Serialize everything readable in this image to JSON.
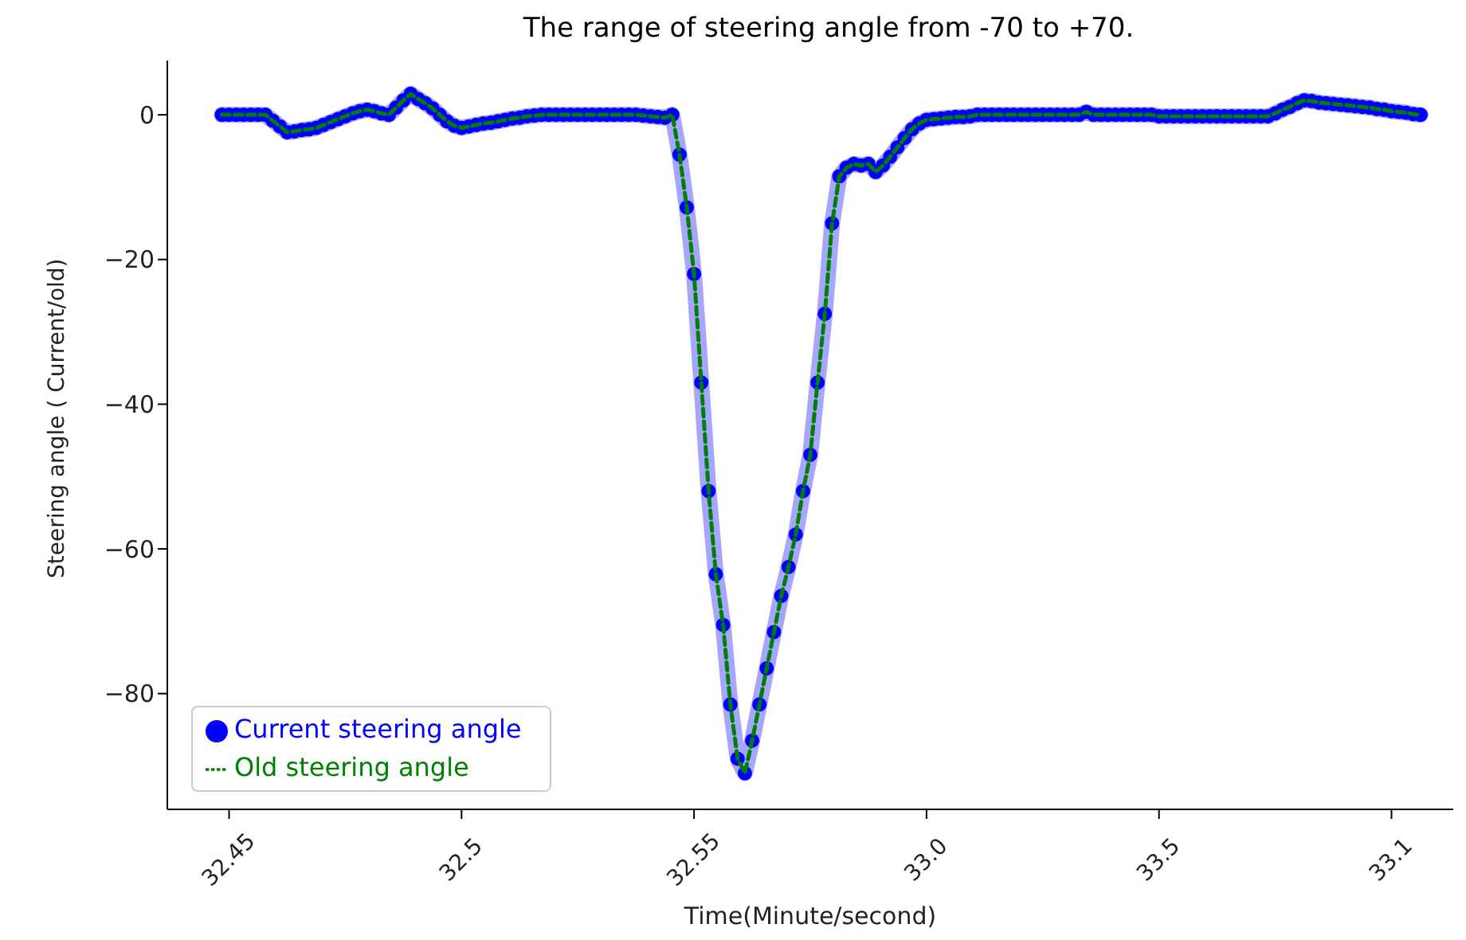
{
  "chart_data": {
    "type": "line",
    "title": "The range of steering angle from -70 to +70.",
    "xlabel": "Time(Minute/second)",
    "ylabel": "Steering angle ( Current/old)",
    "categories": [
      null,
      null,
      null,
      null,
      null,
      null,
      null,
      null,
      "32.45",
      null,
      null,
      null,
      null,
      null,
      null,
      null,
      null,
      null,
      null,
      null,
      null,
      null,
      null,
      null,
      null,
      null,
      null,
      null,
      null,
      null,
      null,
      null,
      null,
      null,
      null,
      null,
      null,
      null,
      null,
      null,
      "32.5",
      null,
      null,
      null,
      null,
      null,
      null,
      null,
      null,
      null,
      null,
      null,
      null,
      null,
      null,
      null,
      null,
      null,
      null,
      null,
      null,
      null,
      null,
      null,
      null,
      null,
      null,
      null,
      null,
      null,
      null,
      null,
      "32.55",
      null,
      null,
      null,
      null,
      null,
      null,
      null,
      null,
      null,
      null,
      null,
      null,
      null,
      null,
      null,
      null,
      null,
      null,
      null,
      null,
      null,
      null,
      null,
      null,
      null,
      null,
      null,
      null,
      null,
      null,
      null,
      "33.0",
      null,
      null,
      null,
      null,
      null,
      null,
      null,
      null,
      null,
      null,
      null,
      null,
      null,
      null,
      null,
      null,
      null,
      null,
      null,
      null,
      null,
      null,
      null,
      null,
      null,
      null,
      null,
      null,
      null,
      null,
      null,
      "33.5",
      null,
      null,
      null,
      null,
      null,
      null,
      null,
      null,
      null,
      null,
      null,
      null,
      null,
      null,
      null,
      null,
      null,
      null,
      null,
      null,
      null,
      null,
      null,
      null,
      null,
      null,
      null,
      null,
      null,
      null,
      null,
      "33.1",
      null,
      null,
      null,
      null,
      null,
      null,
      null,
      null
    ],
    "series": [
      {
        "name": "Current steering angle",
        "color": "#0000ff",
        "marker": "circle",
        "line_style": "solid",
        "values": [
          null,
          null,
          null,
          null,
          null,
          null,
          null,
          0,
          0,
          0,
          0,
          0,
          0,
          0,
          -0.8,
          -1.6,
          -2.4,
          -2.3,
          -2.1,
          -2,
          -1.8,
          -1.4,
          -1,
          -0.6,
          -0.2,
          0.2,
          0.5,
          0.7,
          0.5,
          0.2,
          0,
          1,
          2,
          2.9,
          2.2,
          1.6,
          0.9,
          0,
          -0.9,
          -1.5,
          -1.8,
          -1.6,
          -1.4,
          -1.2,
          -1.1,
          -0.9,
          -0.7,
          -0.5,
          -0.4,
          -0.2,
          -0.1,
          0,
          0,
          0,
          0,
          0,
          0,
          0,
          0,
          0,
          0,
          0,
          0,
          0,
          0,
          -0.1,
          -0.2,
          -0.3,
          -0.4,
          0,
          -5.5,
          -12.8,
          -22,
          -37,
          -52,
          -63.5,
          -70.5,
          -81.5,
          -89,
          -91,
          -86.5,
          -81.5,
          -76.5,
          -71.5,
          -66.5,
          -62.5,
          -58,
          -52,
          -47,
          -37,
          -27.5,
          -15,
          -8.5,
          -7.3,
          -6.8,
          -7,
          -6.8,
          -7.9,
          -7,
          -5.8,
          -4.5,
          -3.2,
          -2,
          -1.2,
          -0.7,
          -0.6,
          -0.5,
          -0.4,
          -0.3,
          -0.3,
          -0.2,
          0,
          0,
          0,
          0,
          0,
          0,
          0,
          0,
          0,
          0,
          0,
          0,
          0,
          0,
          0,
          0.4,
          0,
          0,
          0,
          0,
          0,
          0,
          0,
          0,
          0,
          -0.2,
          -0.2,
          -0.2,
          -0.2,
          -0.2,
          -0.2,
          -0.2,
          -0.2,
          -0.2,
          -0.2,
          -0.2,
          -0.2,
          -0.2,
          -0.2,
          -0.2,
          -0.2,
          0.2,
          0.7,
          1.1,
          1.6,
          2,
          1.9,
          1.7,
          1.6,
          1.5,
          1.4,
          1.3,
          1.2,
          1.1,
          1,
          0.8,
          0.7,
          0.5,
          0.4,
          0.3,
          0.1,
          0,
          null,
          null,
          null,
          null
        ]
      },
      {
        "name": "Old steering angle",
        "color": "#008000",
        "marker": "none",
        "line_style": "dashed",
        "values": [
          null,
          null,
          null,
          null,
          null,
          null,
          null,
          0,
          0,
          0,
          0,
          0,
          0,
          0,
          -0.8,
          -1.6,
          -2.4,
          -2.3,
          -2.1,
          -2,
          -1.8,
          -1.4,
          -1,
          -0.6,
          -0.2,
          0.2,
          0.5,
          0.7,
          0.5,
          0.2,
          0,
          1,
          2,
          2.9,
          2.2,
          1.6,
          0.9,
          0,
          -0.9,
          -1.5,
          -1.8,
          -1.6,
          -1.4,
          -1.2,
          -1.1,
          -0.9,
          -0.7,
          -0.5,
          -0.4,
          -0.2,
          -0.1,
          0,
          0,
          0,
          0,
          0,
          0,
          0,
          0,
          0,
          0,
          0,
          0,
          0,
          0,
          -0.1,
          -0.2,
          -0.3,
          -0.4,
          0,
          -5.5,
          -12.8,
          -22,
          -37,
          -52,
          -63.5,
          -70.5,
          -81.5,
          -89,
          -91,
          -86.5,
          -81.5,
          -76.5,
          -71.5,
          -66.5,
          -62.5,
          -58,
          -52,
          -47,
          -37,
          -27.5,
          -15,
          -8.5,
          -7.3,
          -6.8,
          -7,
          -6.8,
          -7.9,
          -7,
          -5.8,
          -4.5,
          -3.2,
          -2,
          -1.2,
          -0.7,
          -0.6,
          -0.5,
          -0.4,
          -0.3,
          -0.3,
          -0.2,
          0,
          0,
          0,
          0,
          0,
          0,
          0,
          0,
          0,
          0,
          0,
          0,
          0,
          0,
          0,
          0.4,
          0,
          0,
          0,
          0,
          0,
          0,
          0,
          0,
          0,
          -0.2,
          -0.2,
          -0.2,
          -0.2,
          -0.2,
          -0.2,
          -0.2,
          -0.2,
          -0.2,
          -0.2,
          -0.2,
          -0.2,
          -0.2,
          -0.2,
          -0.2,
          -0.2,
          0.2,
          0.7,
          1.1,
          1.6,
          2,
          1.9,
          1.7,
          1.6,
          1.5,
          1.4,
          1.3,
          1.2,
          1.1,
          1,
          0.8,
          0.7,
          0.5,
          0.4,
          0.3,
          0.1,
          0,
          null,
          null,
          null,
          null
        ]
      }
    ],
    "ylim": [
      -96,
      7.5
    ],
    "yticks": [
      0,
      -20,
      -40,
      -60,
      -80
    ],
    "grid": false,
    "legend": "bottom left"
  }
}
